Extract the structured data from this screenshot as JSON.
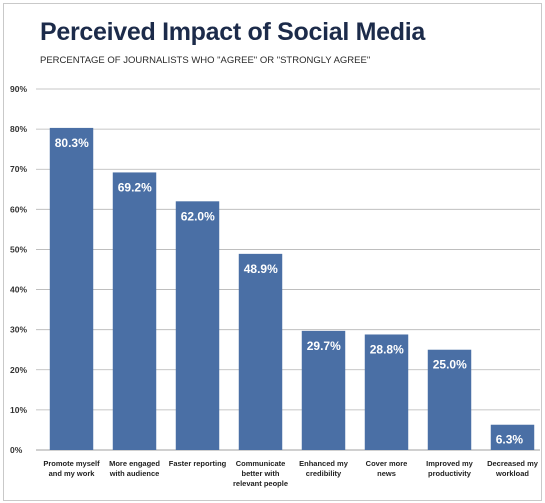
{
  "chart_data": {
    "type": "bar",
    "title": "Perceived Impact of Social Media",
    "subtitle": "PERCENTAGE OF JOURNALISTS WHO \"AGREE\" OR \"STRONGLY AGREE\"",
    "categories": [
      [
        "Promote myself",
        "and my work"
      ],
      [
        "More engaged",
        "with audience"
      ],
      [
        "Faster reporting"
      ],
      [
        "Communicate",
        "better with",
        "relevant people"
      ],
      [
        "Enhanced my",
        "credibility"
      ],
      [
        "Cover more",
        "news"
      ],
      [
        "Improved my",
        "productivity"
      ],
      [
        "Decreased my",
        "workload"
      ]
    ],
    "values": [
      80.3,
      69.2,
      62.0,
      48.9,
      29.7,
      28.8,
      25.0,
      6.3
    ],
    "data_labels": [
      "80.3%",
      "69.2%",
      "62.0%",
      "48.9%",
      "29.7%",
      "28.8%",
      "25.0%",
      "6.3%"
    ],
    "ylim": [
      0,
      90
    ],
    "yticks": [
      0,
      10,
      20,
      30,
      40,
      50,
      60,
      70,
      80,
      90
    ],
    "ytick_labels": [
      "0%",
      "10%",
      "20%",
      "30%",
      "40%",
      "50%",
      "60%",
      "70%",
      "80%",
      "90%"
    ],
    "grid": true,
    "bar_color": "#4a6fa5",
    "grid_color": "#b5b5b5"
  }
}
